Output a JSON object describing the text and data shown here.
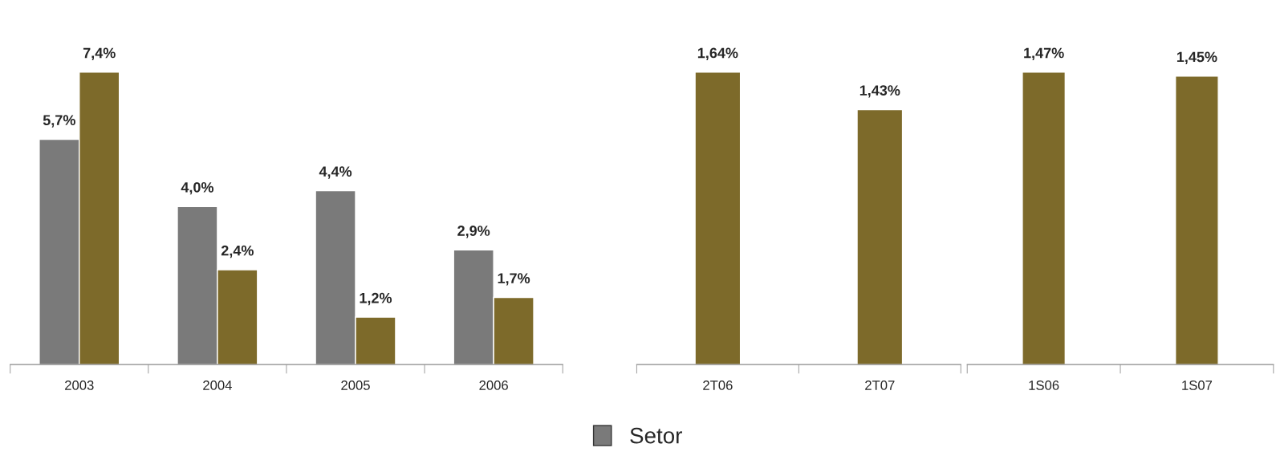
{
  "chart_data": [
    {
      "type": "bar",
      "categories": [
        "2003",
        "2004",
        "2005",
        "2006"
      ],
      "tick_labels": "x",
      "legend": "bottom",
      "grid": false,
      "series": [
        {
          "name": "Setor",
          "color": "#7a7a7a",
          "values": [
            5.7,
            4.0,
            4.4,
            2.9
          ],
          "value_labels": [
            "5,7%",
            "4,0%",
            "4,4%",
            "2,9%"
          ]
        },
        {
          "color": "#7d6a2a",
          "values": [
            7.4,
            2.4,
            1.2,
            1.7
          ],
          "value_labels": [
            "7,4%",
            "2,4%",
            "1,2%",
            "1,7%"
          ]
        }
      ]
    },
    {
      "type": "bar",
      "categories": [
        "2T06",
        "2T07"
      ],
      "tick_labels": "x",
      "grid": false,
      "series": [
        {
          "color": "#7d6a2a",
          "values": [
            1.64,
            1.43
          ],
          "value_labels": [
            "1,64%",
            "1,43%"
          ]
        }
      ]
    },
    {
      "type": "bar",
      "categories": [
        "1S06",
        "1S07"
      ],
      "tick_labels": "x",
      "grid": false,
      "series": [
        {
          "color": "#7d6a2a",
          "values": [
            1.47,
            1.45
          ],
          "value_labels": [
            "1,47%",
            "1,45%"
          ]
        }
      ]
    }
  ]
}
